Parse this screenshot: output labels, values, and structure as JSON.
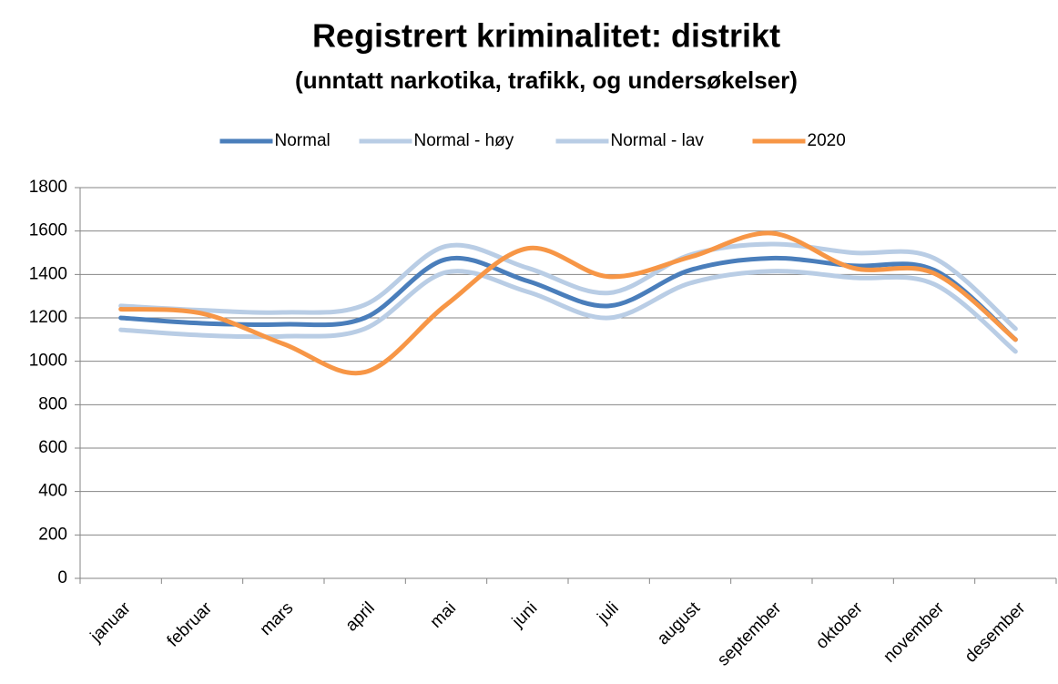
{
  "chart_data": {
    "type": "line",
    "title": "Registrert kriminalitet: distrikt",
    "subtitle": "(unntatt narkotika, trafikk, og undersøkelser)",
    "categories": [
      "januar",
      "februar",
      "mars",
      "april",
      "mai",
      "juni",
      "juli",
      "august",
      "september",
      "oktober",
      "november",
      "desember"
    ],
    "series": [
      {
        "name": "Normal",
        "color": "#4a7ebb",
        "values": [
          1200,
          1175,
          1170,
          1200,
          1470,
          1370,
          1255,
          1420,
          1475,
          1440,
          1420,
          1100
        ]
      },
      {
        "name": "Normal - høy",
        "color": "#b9cde5",
        "values": [
          1255,
          1235,
          1225,
          1260,
          1530,
          1430,
          1315,
          1490,
          1540,
          1500,
          1475,
          1150
        ]
      },
      {
        "name": "Normal - lav",
        "color": "#b9cde5",
        "values": [
          1145,
          1120,
          1115,
          1150,
          1410,
          1320,
          1200,
          1360,
          1415,
          1385,
          1355,
          1045
        ]
      },
      {
        "name": "2020",
        "color": "#f79646",
        "values": [
          1240,
          1220,
          1080,
          950,
          1260,
          1520,
          1390,
          1480,
          1590,
          1430,
          1405,
          1100
        ]
      }
    ],
    "ylim": [
      0,
      1800
    ],
    "yticks": [
      0,
      200,
      400,
      600,
      800,
      1000,
      1200,
      1400,
      1600,
      1800
    ],
    "grid": true,
    "legend": "top",
    "smooth": true
  }
}
